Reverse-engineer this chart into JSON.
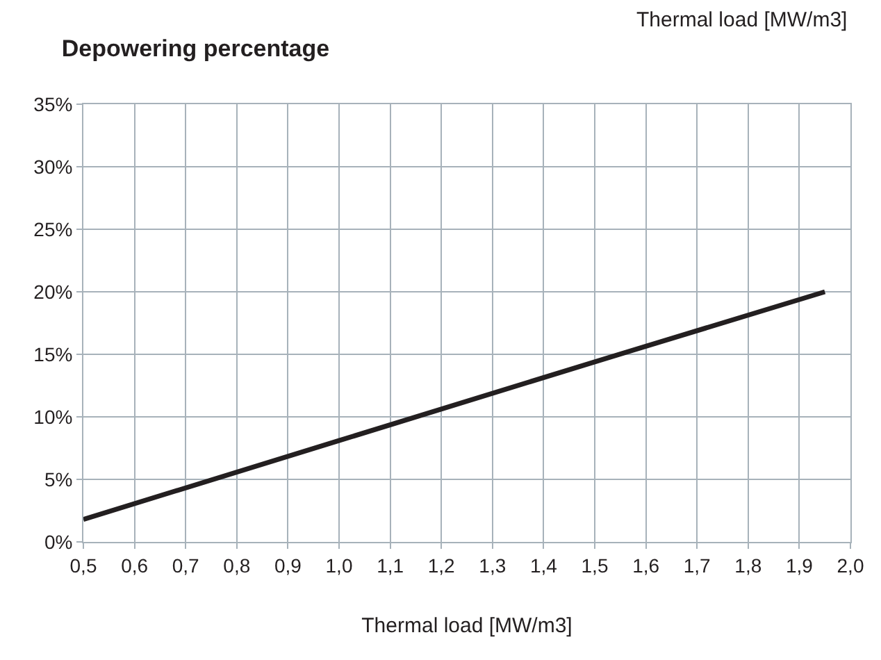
{
  "chart_data": {
    "type": "line",
    "title": "Depowering percentage",
    "xlabel": "Thermal load [MW/m3]",
    "annotations": [
      "Thermal load [MW/m3]"
    ],
    "series": [
      {
        "color": "#231f20",
        "x": [
          0.5,
          1.0,
          1.5,
          1.95
        ],
        "values": [
          1.8,
          8.1,
          14.4,
          20.0
        ]
      }
    ],
    "xlim": [
      0.5,
      2.0
    ],
    "xticks": [
      {
        "value": 0.5,
        "label": "0,5"
      },
      {
        "value": 0.6,
        "label": "0,6"
      },
      {
        "value": 0.7,
        "label": "0,7"
      },
      {
        "value": 0.8,
        "label": "0,8"
      },
      {
        "value": 0.9,
        "label": "0,9"
      },
      {
        "value": 1.0,
        "label": "1,0"
      },
      {
        "value": 1.1,
        "label": "1,1"
      },
      {
        "value": 1.2,
        "label": "1,2"
      },
      {
        "value": 1.3,
        "label": "1,3"
      },
      {
        "value": 1.4,
        "label": "1,4"
      },
      {
        "value": 1.5,
        "label": "1,5"
      },
      {
        "value": 1.6,
        "label": "1,6"
      },
      {
        "value": 1.7,
        "label": "1,7"
      },
      {
        "value": 1.8,
        "label": "1,8"
      },
      {
        "value": 1.9,
        "label": "1,9"
      },
      {
        "value": 2.0,
        "label": "2,0"
      }
    ],
    "ylim": [
      0,
      35
    ],
    "yticks": [
      {
        "value": 0,
        "label": "0%"
      },
      {
        "value": 5,
        "label": "5%"
      },
      {
        "value": 10,
        "label": "10%"
      },
      {
        "value": 15,
        "label": "15%"
      },
      {
        "value": 20,
        "label": "20%"
      },
      {
        "value": 25,
        "label": "25%"
      },
      {
        "value": 30,
        "label": "30%"
      },
      {
        "value": 35,
        "label": "35%"
      }
    ],
    "grid": true,
    "marker": "none",
    "line_style": "solid"
  }
}
